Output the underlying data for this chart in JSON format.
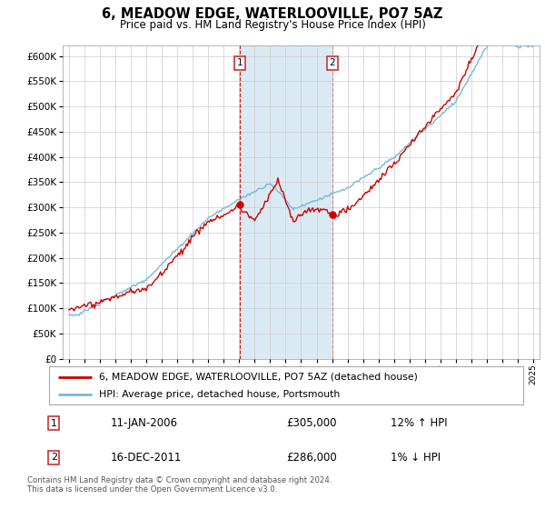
{
  "title": "6, MEADOW EDGE, WATERLOOVILLE, PO7 5AZ",
  "subtitle": "Price paid vs. HM Land Registry's House Price Index (HPI)",
  "ylim": [
    0,
    620000
  ],
  "yticks": [
    0,
    50000,
    100000,
    150000,
    200000,
    250000,
    300000,
    350000,
    400000,
    450000,
    500000,
    550000,
    600000
  ],
  "sale1_x": 2006.04,
  "sale1_price": 305000,
  "sale2_x": 2012.0,
  "sale2_price": 286000,
  "legend_line1": "6, MEADOW EDGE, WATERLOOVILLE, PO7 5AZ (detached house)",
  "legend_line2": "HPI: Average price, detached house, Portsmouth",
  "ann1_date": "11-JAN-2006",
  "ann1_price": "£305,000",
  "ann1_pct": "12% ↑ HPI",
  "ann2_date": "16-DEC-2011",
  "ann2_price": "£286,000",
  "ann2_pct": "1% ↓ HPI",
  "footer": "Contains HM Land Registry data © Crown copyright and database right 2024.\nThis data is licensed under the Open Government Licence v3.0.",
  "hpi_color": "#7ab8d9",
  "price_color": "#cc0000",
  "shade_color": "#daeaf5",
  "vline1_color": "#cc0000",
  "vline2_color": "#e08080",
  "box_color": "#cc3333",
  "grid_color": "#cccccc",
  "bg_color": "#ffffff"
}
